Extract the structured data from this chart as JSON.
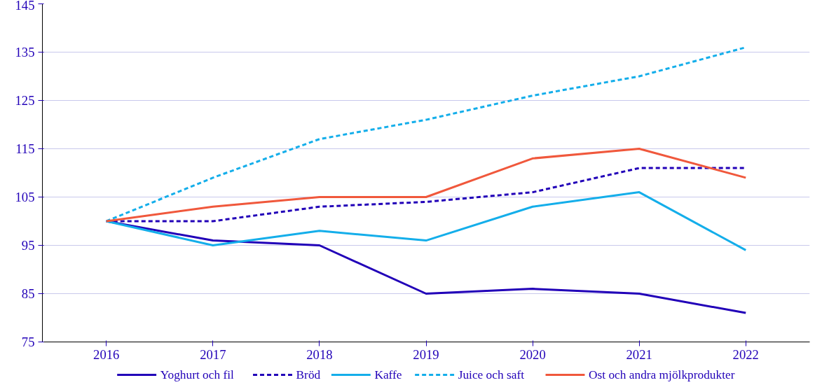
{
  "chart_data": {
    "type": "line",
    "categories": [
      "2016",
      "2017",
      "2018",
      "2019",
      "2020",
      "2021",
      "2022"
    ],
    "ylim": [
      75,
      145
    ],
    "yticks": [
      75,
      85,
      95,
      105,
      115,
      125,
      135,
      145
    ],
    "grid": "y",
    "legend": "bottom",
    "marker": "none",
    "series": [
      {
        "name": "Yoghurt och fil",
        "color": "#2100b8",
        "line_style": "solid",
        "values": [
          100,
          96,
          95,
          85,
          86,
          85,
          81
        ]
      },
      {
        "name": "Bröd",
        "color": "#2100b8",
        "line_style": "dashed",
        "values": [
          100,
          100,
          103,
          104,
          106,
          111,
          111
        ]
      },
      {
        "name": "Kaffe",
        "color": "#14aeea",
        "line_style": "solid",
        "values": [
          100,
          95,
          98,
          96,
          103,
          106,
          94
        ]
      },
      {
        "name": "Juice och saft",
        "color": "#14aeea",
        "line_style": "dashed",
        "values": [
          100,
          109,
          117,
          121,
          126,
          130,
          136
        ]
      },
      {
        "name": "Ost och andra mjölkprodukter",
        "color": "#f0583c",
        "line_style": "solid",
        "values": [
          100,
          103,
          105,
          105,
          113,
          115,
          109
        ]
      }
    ]
  }
}
